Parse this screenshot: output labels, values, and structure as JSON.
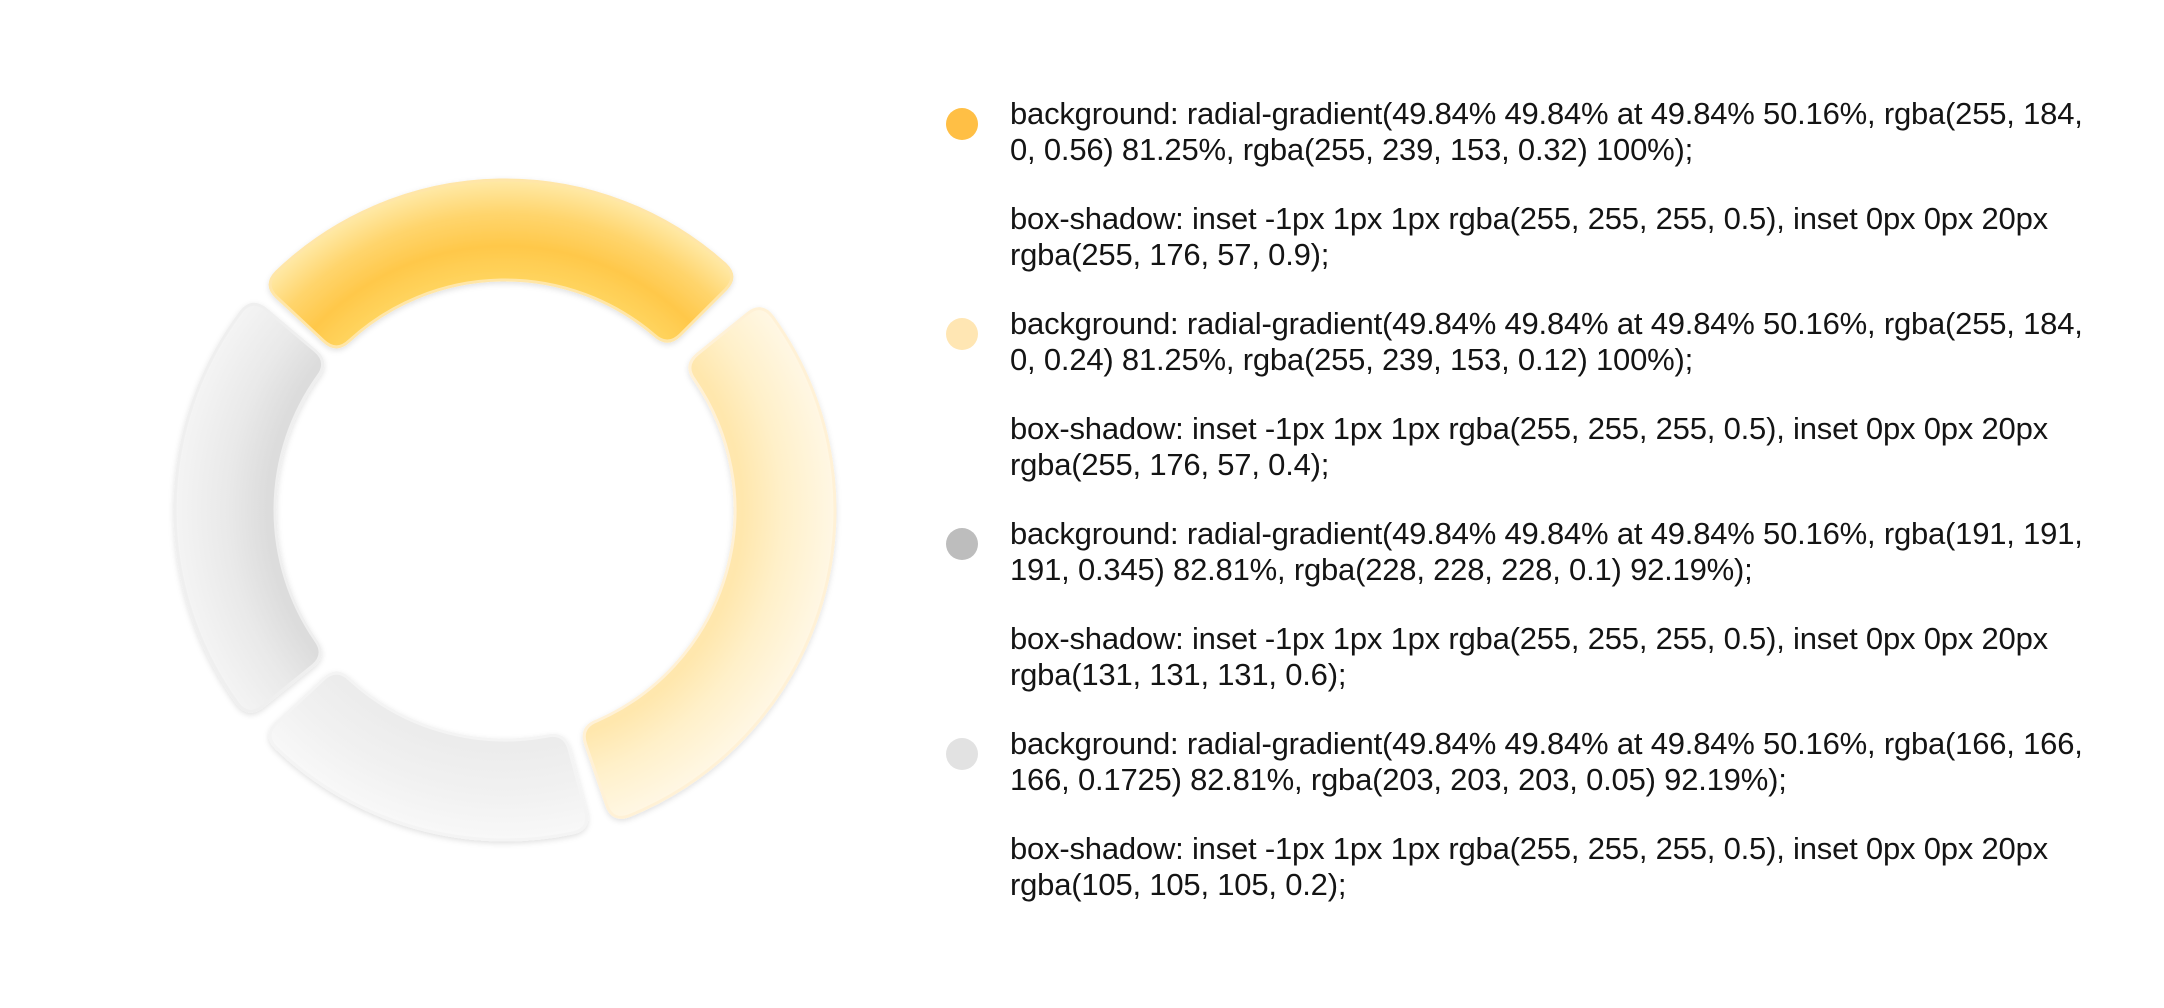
{
  "legend": [
    {
      "color": "#ffbf45",
      "background": "background: radial-gradient(49.84% 49.84% at 49.84% 50.16%, rgba(255, 184, 0, 0.56) 81.25%, rgba(255, 239, 153, 0.32) 100%);",
      "shadow": "box-shadow: inset -1px 1px 1px rgba(255, 255, 255, 0.5), inset 0px 0px 20px rgba(255, 176, 57, 0.9);"
    },
    {
      "color": "#ffe6b3",
      "background": "background: radial-gradient(49.84% 49.84% at 49.84% 50.16%, rgba(255, 184, 0, 0.24) 81.25%, rgba(255, 239, 153, 0.12) 100%);",
      "shadow": "box-shadow: inset -1px 1px 1px rgba(255, 255, 255, 0.5), inset 0px 0px 20px rgba(255, 176, 57, 0.4);"
    },
    {
      "color": "#bdbdbd",
      "background": "background: radial-gradient(49.84% 49.84% at 49.84% 50.16%, rgba(191, 191, 191, 0.345) 82.81%, rgba(228, 228, 228, 0.1) 92.19%);",
      "shadow": "box-shadow: inset -1px 1px 1px rgba(255, 255, 255, 0.5), inset 0px 0px 20px rgba(131, 131, 131, 0.6);"
    },
    {
      "color": "#e2e2e2",
      "background": "background: radial-gradient(49.84% 49.84% at 49.84% 50.16%, rgba(166, 166, 166, 0.1725) 82.81%, rgba(203, 203, 203, 0.05) 92.19%);",
      "shadow": "box-shadow: inset -1px 1px 1px rgba(255, 255, 255, 0.5), inset 0px 0px 20px rgba(105, 105, 105, 0.2);"
    }
  ]
}
